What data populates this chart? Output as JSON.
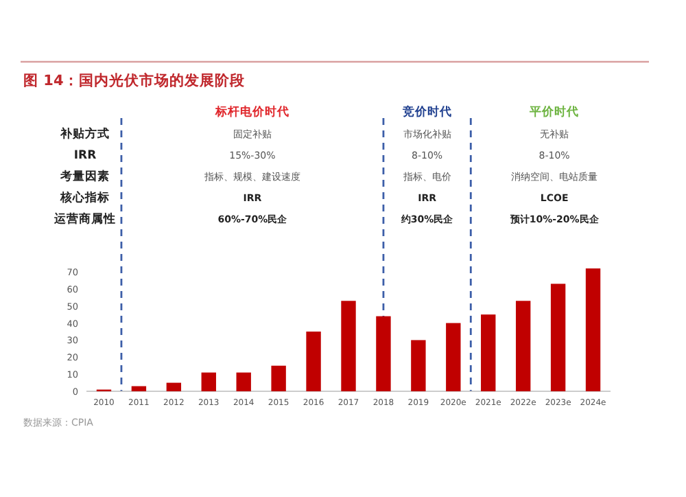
{
  "chart_data": {
    "type": "bar",
    "title": "图 14：国内光伏市场的发展阶段",
    "categories": [
      "2010",
      "2011",
      "2012",
      "2013",
      "2014",
      "2015",
      "2016",
      "2017",
      "2018",
      "2019",
      "2020e",
      "2021e",
      "2022e",
      "2023e",
      "2024e"
    ],
    "values": [
      1,
      3,
      5,
      11,
      11,
      15,
      35,
      53,
      44,
      30,
      40,
      45,
      53,
      63,
      72
    ],
    "color": "#c00000",
    "ylim": [
      0,
      75
    ],
    "yticks": [
      0,
      10,
      20,
      30,
      40,
      50,
      60,
      70
    ],
    "ref_lines": [
      {
        "axis": "x",
        "value": "2018",
        "color": "#3c5ea8",
        "line_style": "dashed"
      }
    ],
    "annotations": [
      "标杆电价时代",
      "竞价时代",
      "平价时代",
      "补贴方式",
      "固定补贴",
      "市场化补贴",
      "无补贴",
      "IRR",
      "15%-30%",
      "8-10%",
      "8-10%",
      "考量因素",
      "指标、规模、建设速度",
      "指标、电价",
      "消纳空间、电站质量",
      "核心指标",
      "IRR",
      "IRR",
      "LCOE",
      "运营商属性",
      "60%-70%民企",
      "约30%民企",
      "预计10%-20%民企",
      "数据来源：CPIA"
    ]
  }
}
